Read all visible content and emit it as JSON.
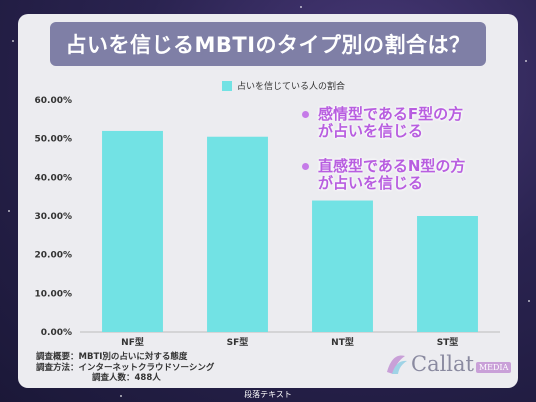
{
  "title": "占いを信じるMBTIのタイプ別の割合は？",
  "chart_data": {
    "type": "bar",
    "categories": [
      "NF型",
      "SF型",
      "NT型",
      "ST型"
    ],
    "series": [
      {
        "name": "占いを信じている人の割合",
        "values": [
          52,
          50.5,
          34,
          30
        ]
      }
    ],
    "ylim": [
      0,
      60
    ],
    "yticks": [
      "0.00%",
      "10.00%",
      "20.00%",
      "30.00%",
      "40.00%",
      "50.00%",
      "60.00%"
    ],
    "grid": false,
    "legend": "top",
    "bar_color": "#72e2e4"
  },
  "callouts": [
    {
      "line1": "感情型であるF型の方",
      "line2": "が占いを信じる"
    },
    {
      "line1": "直感型であるN型の方",
      "line2": "が占いを信じる"
    }
  ],
  "notes": [
    "調査概要：MBTI別の占いに対する態度",
    "調査方法：インターネットクラウドソーシング",
    "調査人数：488人"
  ],
  "logo": {
    "brand": "Callat",
    "sub": "MEDIA"
  },
  "footer": "段落テキスト"
}
